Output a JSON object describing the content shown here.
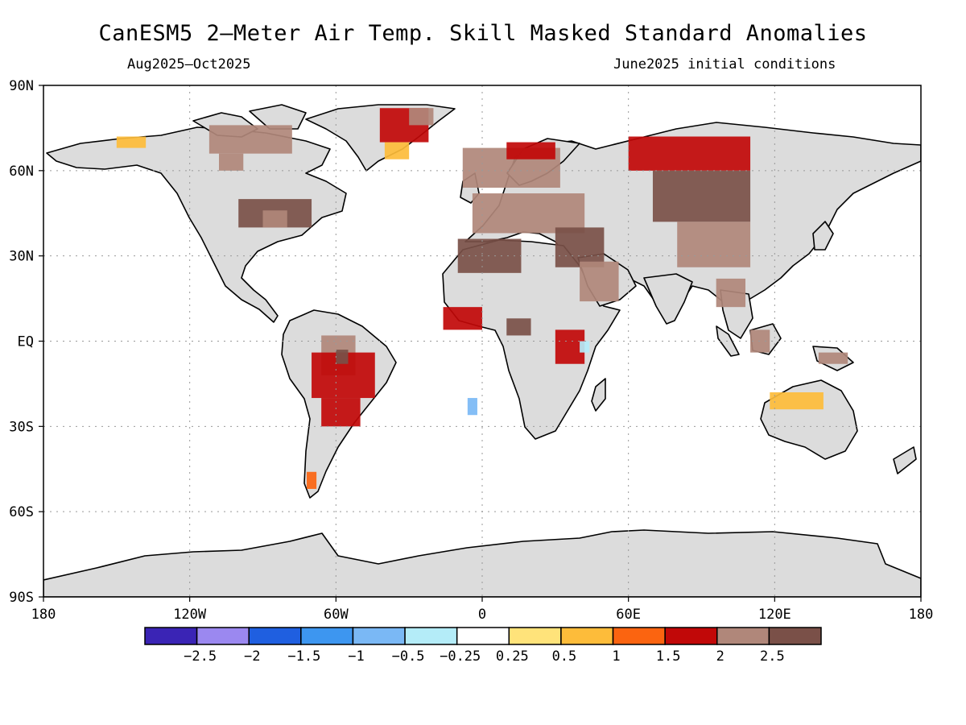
{
  "title": "CanESM5 2—Meter Air Temp. Skill Masked Standard Anomalies",
  "period": "Aug2025—Oct2025",
  "init": "June2025 initial conditions",
  "axes": {
    "lat_labels": [
      "90N",
      "60N",
      "30N",
      "EQ",
      "30S",
      "60S",
      "90S"
    ],
    "lat_values": [
      90,
      60,
      30,
      0,
      -30,
      -60,
      -90
    ],
    "lon_labels": [
      "180",
      "120W",
      "60W",
      "0",
      "60E",
      "120E",
      "180"
    ],
    "lon_values": [
      -180,
      -120,
      -60,
      0,
      60,
      120,
      180
    ]
  },
  "colors": {
    "land_masked": "#dcdcdc",
    "ocean": "#ffffff",
    "coast": "#000000",
    "grid": "#999999"
  },
  "legend": {
    "colors": [
      "#3a24b5",
      "#9b88f0",
      "#1f5fe0",
      "#3d96f0",
      "#7ab8f5",
      "#b4ecf8",
      "#ffffff",
      "#ffe37a",
      "#fdbc3a",
      "#fb6410",
      "#c10808",
      "#b0877a",
      "#7a5048"
    ],
    "labels": [
      "−2.5",
      "−2",
      "−1.5",
      "−1",
      "−0.5",
      "−0.25",
      "0.25",
      "0.5",
      "1",
      "1.5",
      "2",
      "2.5"
    ]
  },
  "chart_data": {
    "type": "heatmap",
    "title": "CanESM5 2—Meter Air Temp. Skill Masked Standard Anomalies",
    "xlim": [
      -180,
      180
    ],
    "ylim": [
      -90,
      90
    ],
    "bins": [
      -2.5,
      -2,
      -1.5,
      -1,
      -0.5,
      -0.25,
      0.25,
      0.5,
      1,
      1.5,
      2,
      2.5
    ],
    "regions": [
      {
        "lon": [
          -42,
          -22
        ],
        "lat": [
          70,
          82
        ],
        "value": 1.5
      },
      {
        "lon": [
          -30,
          -20
        ],
        "lat": [
          76,
          82
        ],
        "value": 2
      },
      {
        "lon": [
          -40,
          -30
        ],
        "lat": [
          64,
          70
        ],
        "value": 0.5
      },
      {
        "lon": [
          -112,
          -78
        ],
        "lat": [
          66,
          76
        ],
        "value": 2
      },
      {
        "lon": [
          -150,
          -138
        ],
        "lat": [
          68,
          72
        ],
        "value": 0.5
      },
      {
        "lon": [
          -108,
          -98
        ],
        "lat": [
          60,
          66
        ],
        "value": 2
      },
      {
        "lon": [
          -100,
          -70
        ],
        "lat": [
          40,
          50
        ],
        "value": 2.5
      },
      {
        "lon": [
          -90,
          -80
        ],
        "lat": [
          40,
          46
        ],
        "value": 2
      },
      {
        "lon": [
          -66,
          -52
        ],
        "lat": [
          -12,
          2
        ],
        "value": 2
      },
      {
        "lon": [
          -70,
          -44
        ],
        "lat": [
          -20,
          -4
        ],
        "value": 1.5
      },
      {
        "lon": [
          -60,
          -55
        ],
        "lat": [
          -8,
          -3
        ],
        "value": 2.5
      },
      {
        "lon": [
          -66,
          -50
        ],
        "lat": [
          -30,
          -20
        ],
        "value": 1.5
      },
      {
        "lon": [
          -72,
          -68
        ],
        "lat": [
          -52,
          -46
        ],
        "value": 1
      },
      {
        "lon": [
          -8,
          32
        ],
        "lat": [
          54,
          68
        ],
        "value": 2
      },
      {
        "lon": [
          10,
          30
        ],
        "lat": [
          64,
          70
        ],
        "value": 1.5
      },
      {
        "lon": [
          -4,
          42
        ],
        "lat": [
          38,
          52
        ],
        "value": 2
      },
      {
        "lon": [
          30,
          50
        ],
        "lat": [
          26,
          40
        ],
        "value": 2.5
      },
      {
        "lon": [
          40,
          56
        ],
        "lat": [
          14,
          28
        ],
        "value": 2
      },
      {
        "lon": [
          -10,
          16
        ],
        "lat": [
          24,
          36
        ],
        "value": 2.5
      },
      {
        "lon": [
          -16,
          0
        ],
        "lat": [
          4,
          12
        ],
        "value": 1.5
      },
      {
        "lon": [
          10,
          20
        ],
        "lat": [
          2,
          8
        ],
        "value": 2.5
      },
      {
        "lon": [
          30,
          42
        ],
        "lat": [
          -8,
          4
        ],
        "value": 1.5
      },
      {
        "lon": [
          60,
          110
        ],
        "lat": [
          60,
          72
        ],
        "value": 1.5
      },
      {
        "lon": [
          70,
          110
        ],
        "lat": [
          42,
          60
        ],
        "value": 2.5
      },
      {
        "lon": [
          80,
          110
        ],
        "lat": [
          26,
          42
        ],
        "value": 2
      },
      {
        "lon": [
          96,
          108
        ],
        "lat": [
          12,
          22
        ],
        "value": 2
      },
      {
        "lon": [
          110,
          118
        ],
        "lat": [
          -4,
          4
        ],
        "value": 2
      },
      {
        "lon": [
          138,
          150
        ],
        "lat": [
          -8,
          -4
        ],
        "value": 2
      },
      {
        "lon": [
          118,
          140
        ],
        "lat": [
          -24,
          -18
        ],
        "value": 0.5
      },
      {
        "lon": [
          -6,
          -2
        ],
        "lat": [
          -26,
          -20
        ],
        "value": -1
      },
      {
        "lon": [
          40,
          44
        ],
        "lat": [
          -4,
          0
        ],
        "value": -0.5
      }
    ]
  }
}
